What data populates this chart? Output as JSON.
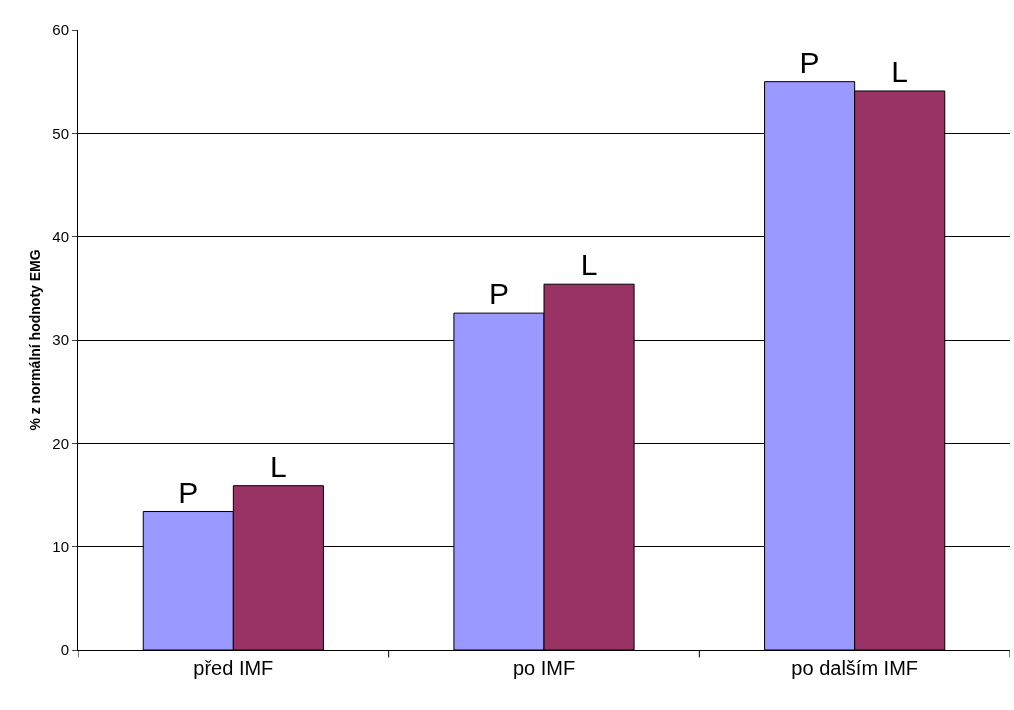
{
  "chart_data": {
    "type": "bar",
    "ylabel": "% z normální hodnoty EMG",
    "categories": [
      "před IMF",
      "po IMF",
      "po dalším IMF"
    ],
    "series": [
      {
        "name": "P",
        "color": "#9999ff",
        "values": [
          13.4,
          32.6,
          55.0
        ]
      },
      {
        "name": "L",
        "color": "#993366",
        "values": [
          15.9,
          35.4,
          54.1
        ]
      }
    ],
    "ylim": [
      0,
      60
    ],
    "yticks": [
      0,
      10,
      20,
      30,
      40,
      50,
      60
    ],
    "grid": "y",
    "legend": false
  }
}
